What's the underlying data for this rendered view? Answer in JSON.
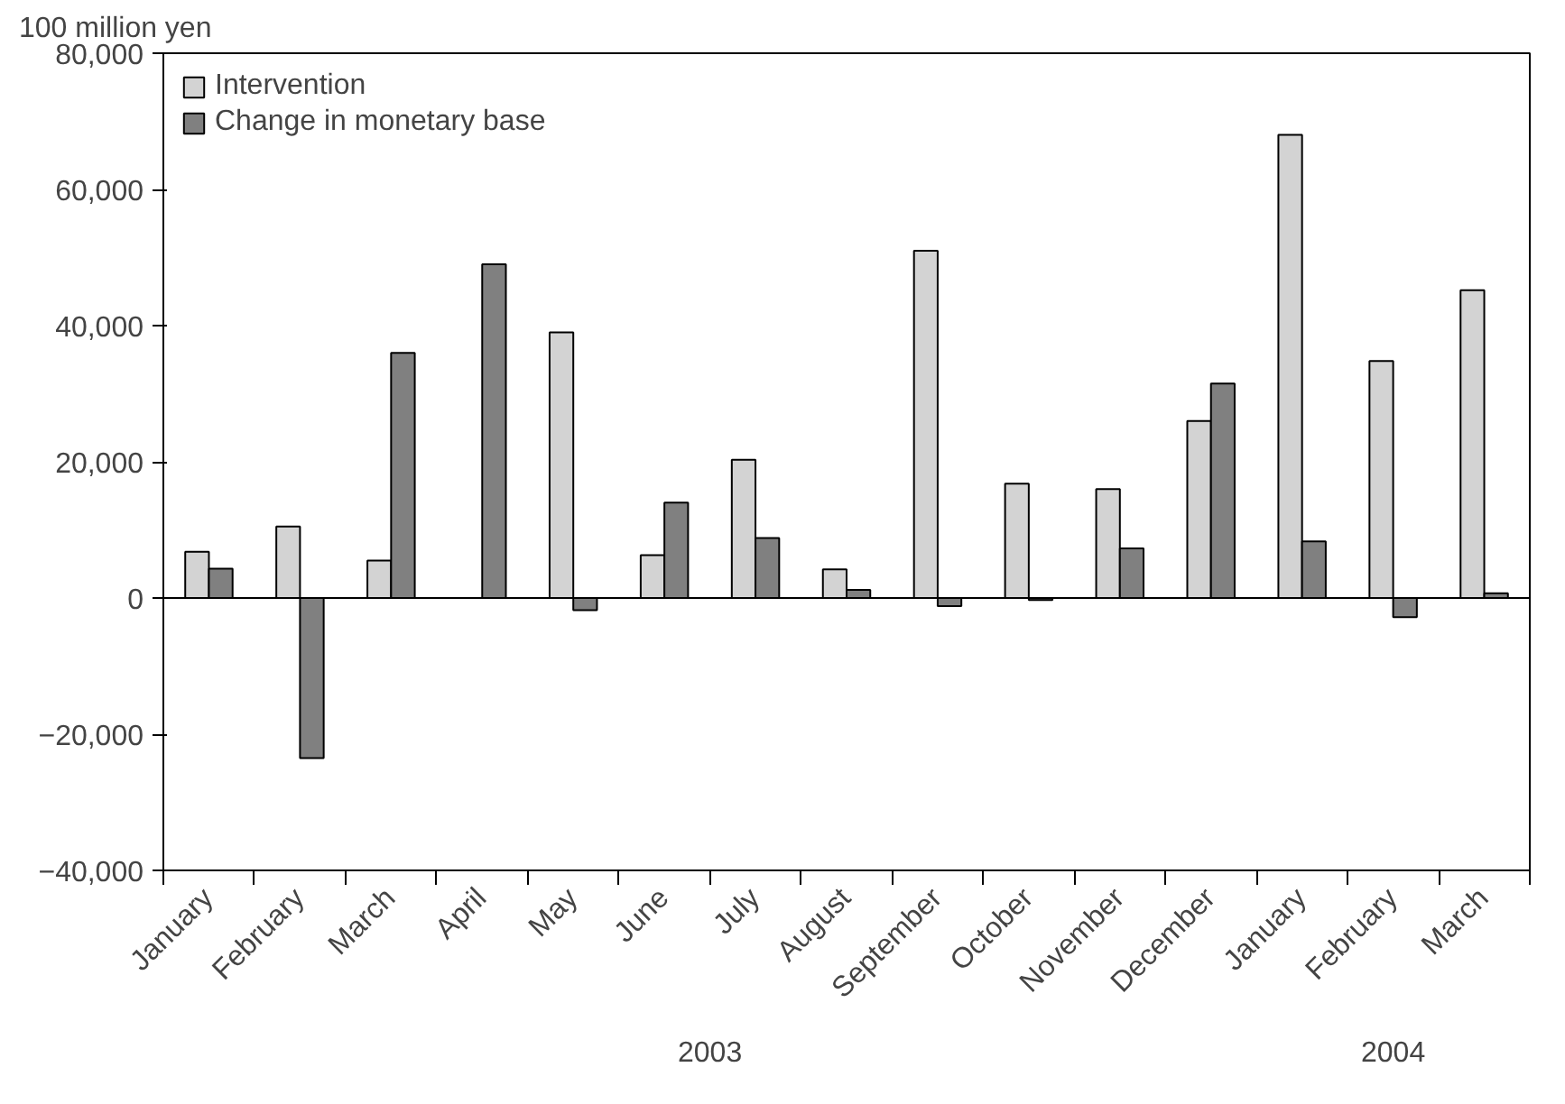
{
  "chart_data": {
    "type": "bar",
    "ylabel": "100 million yen",
    "categories": [
      "January",
      "February",
      "March",
      "April",
      "May",
      "June",
      "July",
      "August",
      "September",
      "October",
      "November",
      "December",
      "January",
      "February",
      "March"
    ],
    "series": [
      {
        "name": "Intervention",
        "color": "#d3d3d3",
        "values": [
          6800,
          10500,
          5500,
          null,
          39000,
          6300,
          20300,
          4200,
          51000,
          16800,
          16000,
          26000,
          68000,
          34800,
          45200
        ]
      },
      {
        "name": "Change in monetary base",
        "color": "#808080",
        "values": [
          4300,
          -23500,
          36000,
          49000,
          -1800,
          14000,
          8800,
          1200,
          -1200,
          -300,
          7300,
          31500,
          8300,
          -2800,
          700
        ]
      }
    ],
    "ylim": [
      -40000,
      80000
    ],
    "yticks": [
      {
        "value": -40000,
        "label": "−40,000"
      },
      {
        "value": -20000,
        "label": "−20,000"
      },
      0,
      {
        "value": 20000,
        "label": "20,000"
      },
      {
        "value": 40000,
        "label": "40,000"
      },
      {
        "value": 60000,
        "label": "60,000"
      },
      {
        "value": 80000,
        "label": "80,000"
      }
    ],
    "annotations": [
      "2003",
      "2004"
    ],
    "ref_lines": [
      {
        "axis": "y",
        "value": 0
      }
    ],
    "grid": false,
    "legend": "top left"
  }
}
